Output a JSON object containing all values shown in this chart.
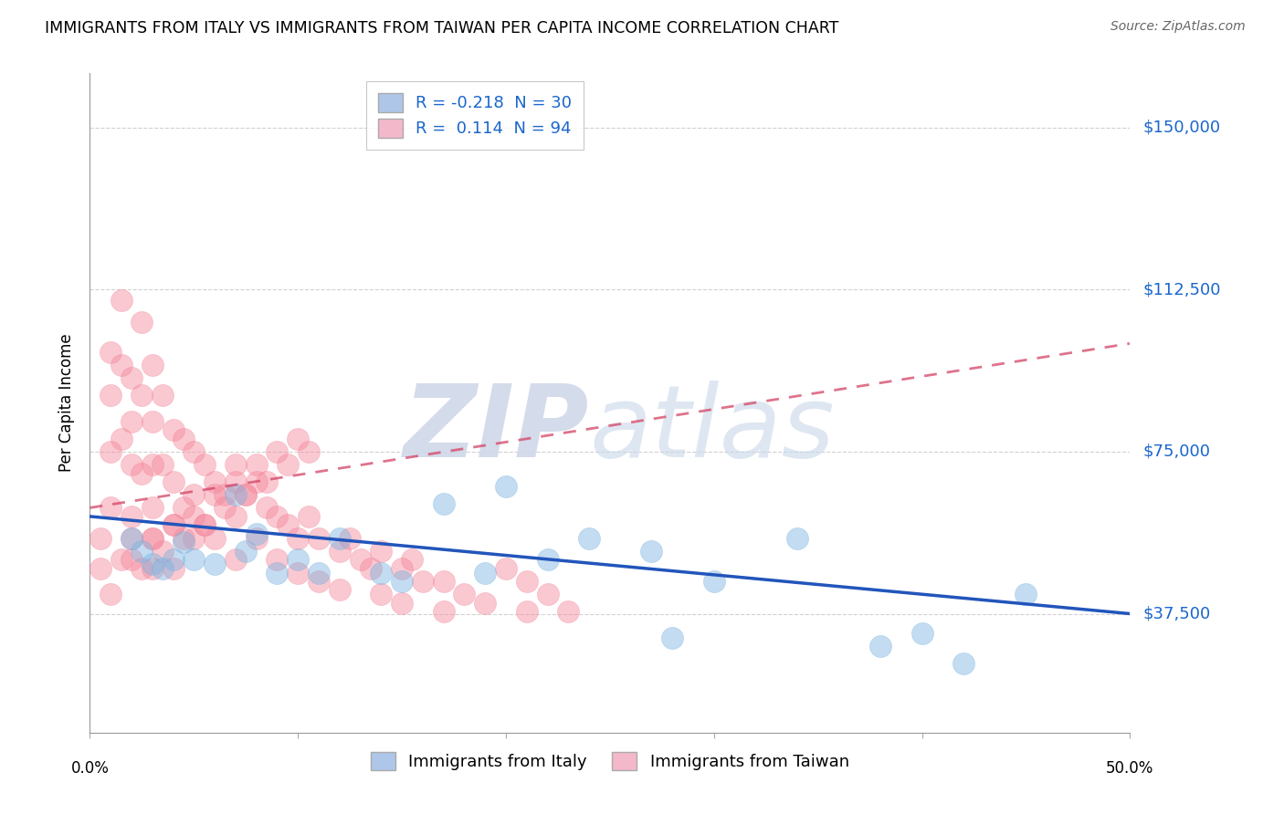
{
  "title": "IMMIGRANTS FROM ITALY VS IMMIGRANTS FROM TAIWAN PER CAPITA INCOME CORRELATION CHART",
  "source": "Source: ZipAtlas.com",
  "ylabel": "Per Capita Income",
  "ytick_labels": [
    "$37,500",
    "$75,000",
    "$112,500",
    "$150,000"
  ],
  "ytick_values": [
    37500,
    75000,
    112500,
    150000
  ],
  "ylim": [
    10000,
    162500
  ],
  "xlim": [
    0.0,
    0.5
  ],
  "legend_blue_label": "R = -0.218  N = 30",
  "legend_pink_label": "R =  0.114  N = 94",
  "legend_blue_color": "#aec6e8",
  "legend_pink_color": "#f4b8cb",
  "italy_color": "#7ab3e0",
  "taiwan_color": "#f4879a",
  "italy_line_color": "#2255bb",
  "taiwan_line_color": "#d44466",
  "italy_scatter_x": [
    0.02,
    0.025,
    0.03,
    0.035,
    0.04,
    0.045,
    0.05,
    0.06,
    0.07,
    0.075,
    0.08,
    0.09,
    0.1,
    0.11,
    0.12,
    0.14,
    0.15,
    0.17,
    0.19,
    0.22,
    0.24,
    0.27,
    0.28,
    0.3,
    0.34,
    0.38,
    0.4,
    0.45,
    0.42,
    0.2
  ],
  "italy_scatter_y": [
    55000,
    52000,
    49000,
    48000,
    50000,
    54000,
    50000,
    49000,
    65000,
    52000,
    56000,
    47000,
    50000,
    47000,
    55000,
    47000,
    45000,
    63000,
    47000,
    50000,
    55000,
    52000,
    32000,
    45000,
    55000,
    30000,
    33000,
    42000,
    26000,
    67000
  ],
  "taiwan_scatter_x": [
    0.005,
    0.01,
    0.01,
    0.01,
    0.01,
    0.015,
    0.015,
    0.015,
    0.02,
    0.02,
    0.02,
    0.02,
    0.02,
    0.025,
    0.025,
    0.025,
    0.03,
    0.03,
    0.03,
    0.03,
    0.03,
    0.03,
    0.035,
    0.035,
    0.04,
    0.04,
    0.04,
    0.04,
    0.045,
    0.045,
    0.05,
    0.05,
    0.05,
    0.055,
    0.055,
    0.06,
    0.06,
    0.065,
    0.07,
    0.07,
    0.07,
    0.075,
    0.08,
    0.08,
    0.085,
    0.09,
    0.09,
    0.095,
    0.1,
    0.1,
    0.105,
    0.11,
    0.11,
    0.12,
    0.12,
    0.125,
    0.13,
    0.135,
    0.14,
    0.14,
    0.15,
    0.15,
    0.155,
    0.16,
    0.17,
    0.17,
    0.18,
    0.19,
    0.2,
    0.21,
    0.21,
    0.22,
    0.23,
    0.005,
    0.01,
    0.015,
    0.02,
    0.025,
    0.03,
    0.035,
    0.04,
    0.045,
    0.05,
    0.055,
    0.06,
    0.065,
    0.07,
    0.075,
    0.08,
    0.085,
    0.09,
    0.095,
    0.1,
    0.105
  ],
  "taiwan_scatter_y": [
    55000,
    98000,
    88000,
    75000,
    62000,
    110000,
    95000,
    78000,
    92000,
    82000,
    72000,
    60000,
    50000,
    105000,
    88000,
    70000,
    95000,
    82000,
    72000,
    62000,
    55000,
    48000,
    88000,
    72000,
    80000,
    68000,
    58000,
    48000,
    78000,
    62000,
    75000,
    65000,
    55000,
    72000,
    58000,
    68000,
    55000,
    65000,
    72000,
    60000,
    50000,
    65000,
    68000,
    55000,
    62000,
    60000,
    50000,
    58000,
    55000,
    47000,
    60000,
    55000,
    45000,
    52000,
    43000,
    55000,
    50000,
    48000,
    52000,
    42000,
    48000,
    40000,
    50000,
    45000,
    45000,
    38000,
    42000,
    40000,
    48000,
    45000,
    38000,
    42000,
    38000,
    48000,
    42000,
    50000,
    55000,
    48000,
    55000,
    52000,
    58000,
    55000,
    60000,
    58000,
    65000,
    62000,
    68000,
    65000,
    72000,
    68000,
    75000,
    72000,
    78000,
    75000
  ],
  "background_color": "#ffffff",
  "grid_color": "#cccccc"
}
